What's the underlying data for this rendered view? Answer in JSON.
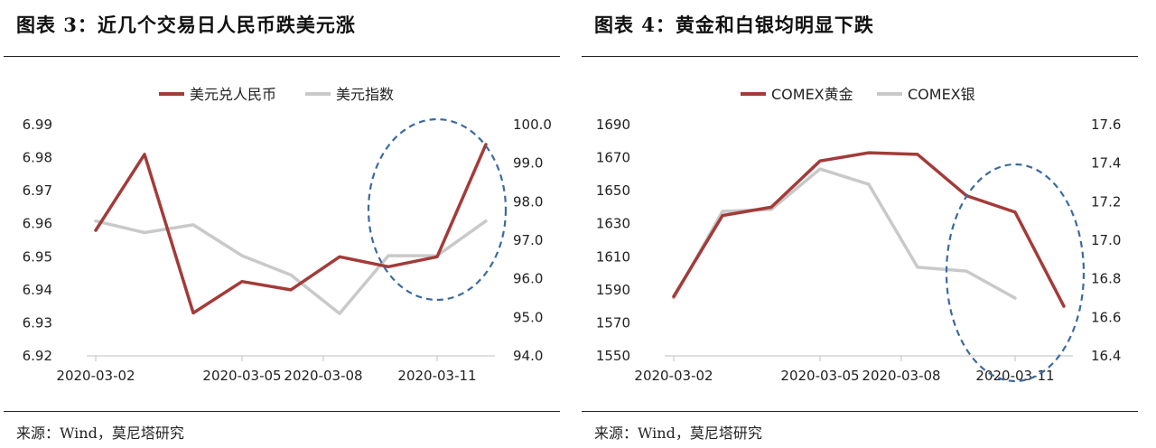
{
  "figures": [
    {
      "title": "图表 3：近几个交易日人民币跌美元涨",
      "source": "来源：Wind，莫尼塔研究",
      "chart_data": {
        "type": "line",
        "categories": [
          "2020-03-02",
          "2020-03-03",
          "2020-03-04",
          "2020-03-05",
          "2020-03-06",
          "2020-03-09",
          "2020-03-10",
          "2020-03-11",
          "2020-03-12"
        ],
        "x_tick_labels": [
          "2020-03-02",
          "2020-03-05",
          "2020-03-08",
          "2020-03-11"
        ],
        "ylim_left": [
          6.92,
          6.99
        ],
        "yticks_left": [
          "6.92",
          "6.93",
          "6.94",
          "6.95",
          "6.96",
          "6.97",
          "6.98",
          "6.99"
        ],
        "ylim_right": [
          94.0,
          100.0
        ],
        "yticks_right": [
          "94.0",
          "95.0",
          "96.0",
          "97.0",
          "98.0",
          "99.0",
          "100.0"
        ],
        "legend_position": "top",
        "series": [
          {
            "name": "美元兑人民币",
            "axis": "left",
            "color": "#a33b39",
            "values": [
              6.958,
              6.981,
              6.933,
              6.9425,
              6.94,
              6.95,
              6.947,
              6.95,
              6.984
            ]
          },
          {
            "name": "美元指数",
            "axis": "right",
            "color": "#c9c9c9",
            "values": [
              97.5,
              97.2,
              97.4,
              96.6,
              96.1,
              95.1,
              96.6,
              96.6,
              97.5
            ]
          }
        ],
        "annotation": {
          "type": "dashed-ellipse",
          "color": "#3c6aa0",
          "around_x": [
            "2020-03-10",
            "2020-03-12"
          ]
        }
      }
    },
    {
      "title": "图表 4：黄金和白银均明显下跌",
      "source": "来源：Wind，莫尼塔研究",
      "chart_data": {
        "type": "line",
        "categories": [
          "2020-03-02",
          "2020-03-03",
          "2020-03-04",
          "2020-03-05",
          "2020-03-06",
          "2020-03-09",
          "2020-03-10",
          "2020-03-11",
          "2020-03-12"
        ],
        "x_tick_labels": [
          "2020-03-02",
          "2020-03-05",
          "2020-03-08",
          "2020-03-11"
        ],
        "ylim_left": [
          1550,
          1690
        ],
        "yticks_left": [
          "1550",
          "1570",
          "1590",
          "1610",
          "1630",
          "1650",
          "1670",
          "1690"
        ],
        "ylim_right": [
          16.4,
          17.6
        ],
        "yticks_right": [
          "16.4",
          "16.6",
          "16.8",
          "17.0",
          "17.2",
          "17.4",
          "17.6"
        ],
        "legend_position": "top",
        "series": [
          {
            "name": "COMEX黄金",
            "axis": "left",
            "color": "#a33b39",
            "values": [
              1586,
              1635,
              1640,
              1668,
              1673,
              1672,
              1647,
              1637,
              1580
            ]
          },
          {
            "name": "COMEX银",
            "axis": "right",
            "color": "#c9c9c9",
            "values": [
              16.7,
              17.15,
              17.16,
              17.37,
              17.29,
              16.86,
              16.84,
              16.7,
              null
            ]
          }
        ],
        "annotation": {
          "type": "dashed-ellipse",
          "color": "#3c6aa0",
          "around_x": [
            "2020-03-10",
            "2020-03-12"
          ]
        }
      }
    }
  ]
}
